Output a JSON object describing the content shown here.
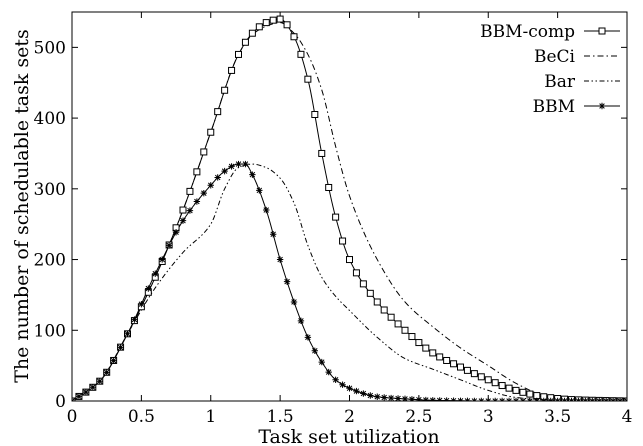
{
  "chart_data": {
    "type": "line",
    "title": "",
    "xlabel": "Task set utilization",
    "ylabel": "The number of schedulable task sets",
    "xlim": [
      0,
      4
    ],
    "ylim": [
      0,
      550
    ],
    "x_ticks": [
      0,
      0.5,
      1,
      1.5,
      2,
      2.5,
      3,
      3.5,
      4
    ],
    "x_tick_labels": [
      "0",
      "0.5",
      "1",
      "1.5",
      "2",
      "2.5",
      "3",
      "3.5",
      "4"
    ],
    "y_ticks": [
      0,
      100,
      200,
      300,
      400,
      500
    ],
    "y_tick_labels": [
      "0",
      "100",
      "200",
      "300",
      "400",
      "500"
    ],
    "grid": false,
    "legend_position": "top-right",
    "series": [
      {
        "name": "BBM-comp",
        "style": "solid",
        "marker": "square",
        "color": "#000000",
        "x": [
          0,
          0.2,
          0.4,
          0.6,
          0.8,
          1.0,
          1.2,
          1.3,
          1.4,
          1.5,
          1.6,
          1.7,
          1.8,
          1.9,
          2.0,
          2.2,
          2.4,
          2.6,
          2.8,
          3.0,
          3.2,
          3.4,
          3.6,
          4.0
        ],
        "y": [
          0,
          28,
          95,
          175,
          270,
          380,
          490,
          520,
          535,
          540,
          515,
          455,
          350,
          260,
          200,
          140,
          100,
          68,
          48,
          30,
          15,
          6,
          2,
          0
        ]
      },
      {
        "name": "BeCi",
        "style": "dashdot",
        "marker": "none",
        "color": "#000000",
        "x": [
          0,
          0.2,
          0.4,
          0.6,
          0.8,
          1.0,
          1.2,
          1.3,
          1.4,
          1.5,
          1.6,
          1.7,
          1.8,
          1.9,
          2.0,
          2.2,
          2.4,
          2.6,
          2.8,
          3.0,
          3.2,
          3.4,
          3.6,
          4.0
        ],
        "y": [
          0,
          28,
          95,
          175,
          270,
          380,
          490,
          518,
          530,
          535,
          520,
          490,
          440,
          360,
          290,
          200,
          140,
          105,
          75,
          50,
          25,
          8,
          2,
          0
        ]
      },
      {
        "name": "Bar",
        "style": "dashdotdot",
        "marker": "none",
        "color": "#000000",
        "x": [
          0,
          0.2,
          0.4,
          0.6,
          0.8,
          1.0,
          1.1,
          1.2,
          1.3,
          1.4,
          1.5,
          1.6,
          1.7,
          1.8,
          1.9,
          2.0,
          2.2,
          2.4,
          2.6,
          2.8,
          3.0,
          3.2,
          3.4,
          3.6,
          4.0
        ],
        "y": [
          0,
          28,
          95,
          160,
          210,
          250,
          300,
          330,
          335,
          330,
          315,
          280,
          220,
          175,
          148,
          128,
          90,
          60,
          45,
          30,
          15,
          5,
          2,
          1,
          0
        ]
      },
      {
        "name": "BBM",
        "style": "solid",
        "marker": "asterisk",
        "color": "#000000",
        "x": [
          0,
          0.2,
          0.4,
          0.6,
          0.8,
          1.0,
          1.1,
          1.2,
          1.25,
          1.3,
          1.4,
          1.5,
          1.6,
          1.7,
          1.8,
          1.9,
          2.0,
          2.2,
          2.4,
          2.6,
          3.0,
          3.5,
          4.0
        ],
        "y": [
          0,
          28,
          95,
          180,
          255,
          305,
          325,
          335,
          335,
          320,
          270,
          200,
          140,
          90,
          55,
          30,
          18,
          6,
          3,
          1,
          0,
          0,
          0
        ]
      }
    ]
  }
}
